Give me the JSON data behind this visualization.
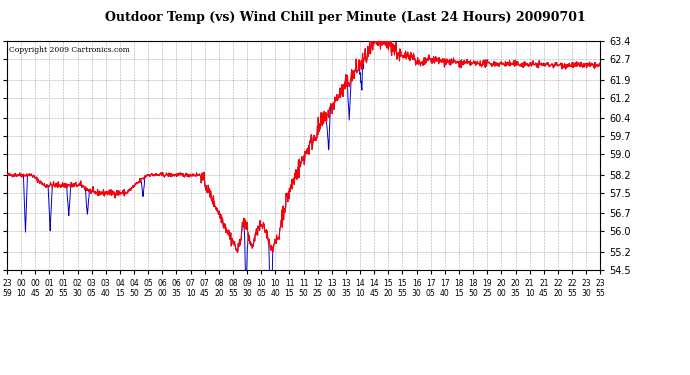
{
  "title": "Outdoor Temp (vs) Wind Chill per Minute (Last 24 Hours) 20090701",
  "copyright": "Copyright 2009 Cartronics.com",
  "background_color": "#ffffff",
  "plot_background": "#ffffff",
  "grid_color": "#aaaaaa",
  "line_color_temp": "#ff0000",
  "line_color_wind": "#0000cc",
  "ylim_min": 54.5,
  "ylim_max": 63.4,
  "yticks": [
    54.5,
    55.2,
    56.0,
    56.7,
    57.5,
    58.2,
    59.0,
    59.7,
    60.4,
    61.2,
    61.9,
    62.7,
    63.4
  ],
  "xtick_labels": [
    "23:59",
    "00:10",
    "00:45",
    "01:20",
    "01:55",
    "02:30",
    "03:05",
    "03:40",
    "04:15",
    "04:50",
    "05:25",
    "06:00",
    "06:35",
    "07:10",
    "07:45",
    "08:20",
    "08:55",
    "09:30",
    "10:05",
    "10:40",
    "11:15",
    "11:50",
    "12:25",
    "13:00",
    "13:35",
    "14:10",
    "14:45",
    "15:20",
    "15:55",
    "16:30",
    "17:05",
    "17:40",
    "18:15",
    "18:50",
    "19:25",
    "20:00",
    "20:35",
    "21:10",
    "21:45",
    "22:20",
    "22:55",
    "23:30",
    "23:55"
  ],
  "num_points": 1440
}
